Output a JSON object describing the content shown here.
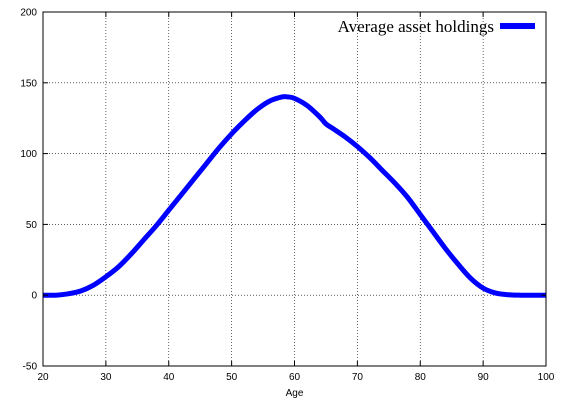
{
  "chart_data": {
    "type": "line",
    "title": "",
    "xlabel": "Age",
    "ylabel": "",
    "xlim": [
      20,
      100
    ],
    "ylim": [
      -50,
      200
    ],
    "xticks": [
      20,
      30,
      40,
      50,
      60,
      70,
      80,
      90,
      100
    ],
    "yticks": [
      -50,
      0,
      50,
      100,
      150,
      200
    ],
    "grid": true,
    "legend_position": "top-right",
    "series": [
      {
        "name": "Average asset holdings",
        "color": "#0000ff",
        "x": [
          20,
          22,
          24,
          26,
          28,
          30,
          32,
          34,
          36,
          38,
          40,
          42,
          44,
          46,
          48,
          50,
          52,
          54,
          56,
          58,
          59,
          60,
          62,
          64,
          65,
          66,
          68,
          70,
          72,
          74,
          76,
          78,
          80,
          82,
          84,
          86,
          88,
          90,
          92,
          94,
          96,
          98,
          100
        ],
        "y": [
          0,
          0,
          1,
          3,
          7,
          13,
          20,
          29,
          39,
          49,
          60,
          71,
          82,
          93,
          104,
          114,
          123,
          131,
          137,
          140,
          140,
          139,
          134,
          126,
          121,
          118,
          112,
          105,
          97,
          88,
          79,
          69,
          57,
          45,
          33,
          22,
          12,
          5,
          1.5,
          0.3,
          0,
          0,
          0
        ]
      }
    ]
  }
}
